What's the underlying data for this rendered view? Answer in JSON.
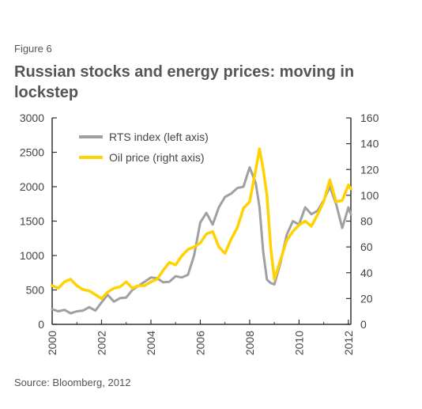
{
  "figure_label": "Figure 6",
  "title": "Russian stocks and energy prices: moving in lockstep",
  "source": "Source: Bloomberg, 2012",
  "chart_data": {
    "type": "line",
    "x_ticks": [
      "2000",
      "2002",
      "2004",
      "2006",
      "2008",
      "2010",
      "2012"
    ],
    "x_range": [
      2000,
      2012.1
    ],
    "y_left": {
      "range": [
        0,
        3000
      ],
      "ticks": [
        "0",
        "500",
        "1000",
        "1500",
        "2000",
        "2500",
        "3000"
      ]
    },
    "y_right": {
      "range": [
        0,
        160
      ],
      "ticks": [
        "0",
        "20",
        "40",
        "60",
        "80",
        "100",
        "120",
        "140",
        "160"
      ]
    },
    "grid": false,
    "legend_position": "top-left",
    "colors": {
      "rts": "#a0a0a0",
      "oil": "#ffd200",
      "axis": "#333333"
    },
    "series": [
      {
        "name": "RTS index (left axis)",
        "axis": "left",
        "x": [
          2000.0,
          2000.25,
          2000.5,
          2000.75,
          2001.0,
          2001.25,
          2001.5,
          2001.75,
          2002.0,
          2002.25,
          2002.5,
          2002.75,
          2003.0,
          2003.25,
          2003.5,
          2003.75,
          2004.0,
          2004.25,
          2004.5,
          2004.75,
          2005.0,
          2005.25,
          2005.5,
          2005.75,
          2006.0,
          2006.25,
          2006.5,
          2006.75,
          2007.0,
          2007.25,
          2007.5,
          2007.75,
          2008.0,
          2008.25,
          2008.4,
          2008.55,
          2008.7,
          2008.85,
          2009.0,
          2009.25,
          2009.5,
          2009.75,
          2010.0,
          2010.25,
          2010.5,
          2010.75,
          2011.0,
          2011.25,
          2011.5,
          2011.75,
          2012.0,
          2012.1
        ],
        "values": [
          220,
          190,
          210,
          160,
          190,
          200,
          250,
          200,
          320,
          430,
          330,
          380,
          390,
          500,
          560,
          620,
          680,
          670,
          610,
          620,
          700,
          680,
          720,
          1000,
          1480,
          1620,
          1450,
          1700,
          1850,
          1900,
          1980,
          2000,
          2280,
          2050,
          1700,
          1050,
          650,
          600,
          580,
          900,
          1300,
          1500,
          1450,
          1700,
          1600,
          1650,
          1800,
          2000,
          1750,
          1400,
          1700,
          1600
        ]
      },
      {
        "name": "Oil price (right axis)",
        "axis": "right",
        "x": [
          2000.0,
          2000.25,
          2000.5,
          2000.75,
          2001.0,
          2001.25,
          2001.5,
          2001.75,
          2002.0,
          2002.25,
          2002.5,
          2002.75,
          2003.0,
          2003.25,
          2003.5,
          2003.75,
          2004.0,
          2004.25,
          2004.5,
          2004.75,
          2005.0,
          2005.25,
          2005.5,
          2005.75,
          2006.0,
          2006.25,
          2006.5,
          2006.75,
          2007.0,
          2007.25,
          2007.5,
          2007.75,
          2008.0,
          2008.25,
          2008.4,
          2008.55,
          2008.7,
          2008.85,
          2009.0,
          2009.25,
          2009.5,
          2009.75,
          2010.0,
          2010.25,
          2010.5,
          2010.75,
          2011.0,
          2011.25,
          2011.5,
          2011.75,
          2012.0,
          2012.1
        ],
        "values": [
          30,
          28,
          33,
          35,
          30,
          27,
          26,
          23,
          20,
          25,
          28,
          29,
          33,
          28,
          30,
          30,
          33,
          35,
          42,
          48,
          46,
          53,
          58,
          60,
          63,
          70,
          72,
          60,
          55,
          66,
          75,
          90,
          95,
          120,
          136,
          120,
          100,
          60,
          35,
          50,
          65,
          72,
          77,
          80,
          76,
          85,
          95,
          112,
          95,
          96,
          108,
          105
        ]
      }
    ]
  }
}
